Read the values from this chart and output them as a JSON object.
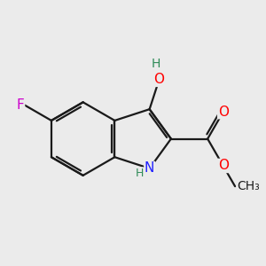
{
  "background_color": "#ebebeb",
  "bond_color": "#1a1a1a",
  "atom_colors": {
    "C": "#1a1a1a",
    "N": "#2020ff",
    "O": "#ff0000",
    "F": "#cc00cc",
    "H": "#2e8b57"
  },
  "figsize": [
    3.0,
    3.0
  ],
  "dpi": 100,
  "bond_lw": 1.6,
  "font_size": 11
}
